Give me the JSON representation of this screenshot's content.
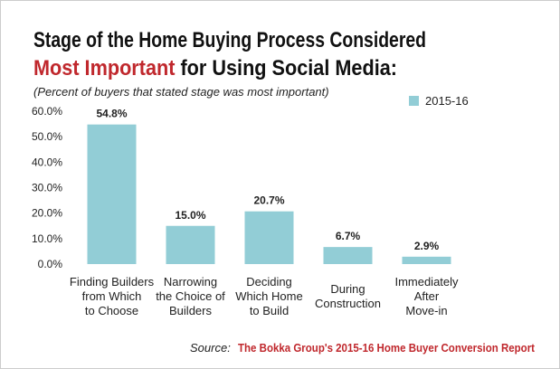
{
  "chart_data": {
    "type": "bar",
    "title": "Stage of the Home Buying Process Considered",
    "title_highlight": "Most Important",
    "title_rest": "for Using Social Media:",
    "subtitle": "(Percent of buyers that stated stage was most important)",
    "categories": [
      "Finding Builders\nfrom Which\nto Choose",
      "Narrowing\nthe Choice of\nBuilders",
      "Deciding\nWhich Home\nto Build",
      "During\nConstruction",
      "Immediately\nAfter\nMove-in"
    ],
    "series": [
      {
        "name": "2015-16",
        "color": "#92cdd6",
        "values": [
          54.8,
          15.0,
          20.7,
          6.7,
          2.9
        ],
        "value_labels": [
          "54.8%",
          "15.0%",
          "20.7%",
          "6.7%",
          "2.9%"
        ]
      }
    ],
    "ylim": [
      0,
      60
    ],
    "yticks": [
      {
        "value": 0,
        "label": "0.0%"
      },
      {
        "value": 10,
        "label": "10.0%"
      },
      {
        "value": 20,
        "label": "20.0%"
      },
      {
        "value": 30,
        "label": "30.0%"
      },
      {
        "value": 40,
        "label": "40.0%"
      },
      {
        "value": 50,
        "label": "50.0%"
      },
      {
        "value": 60,
        "label": "60.0%"
      }
    ],
    "legend": "top-right",
    "source_label": "Source:",
    "source_text": "The Bokka Group's 2015-16 Home Buyer Conversion Report"
  }
}
